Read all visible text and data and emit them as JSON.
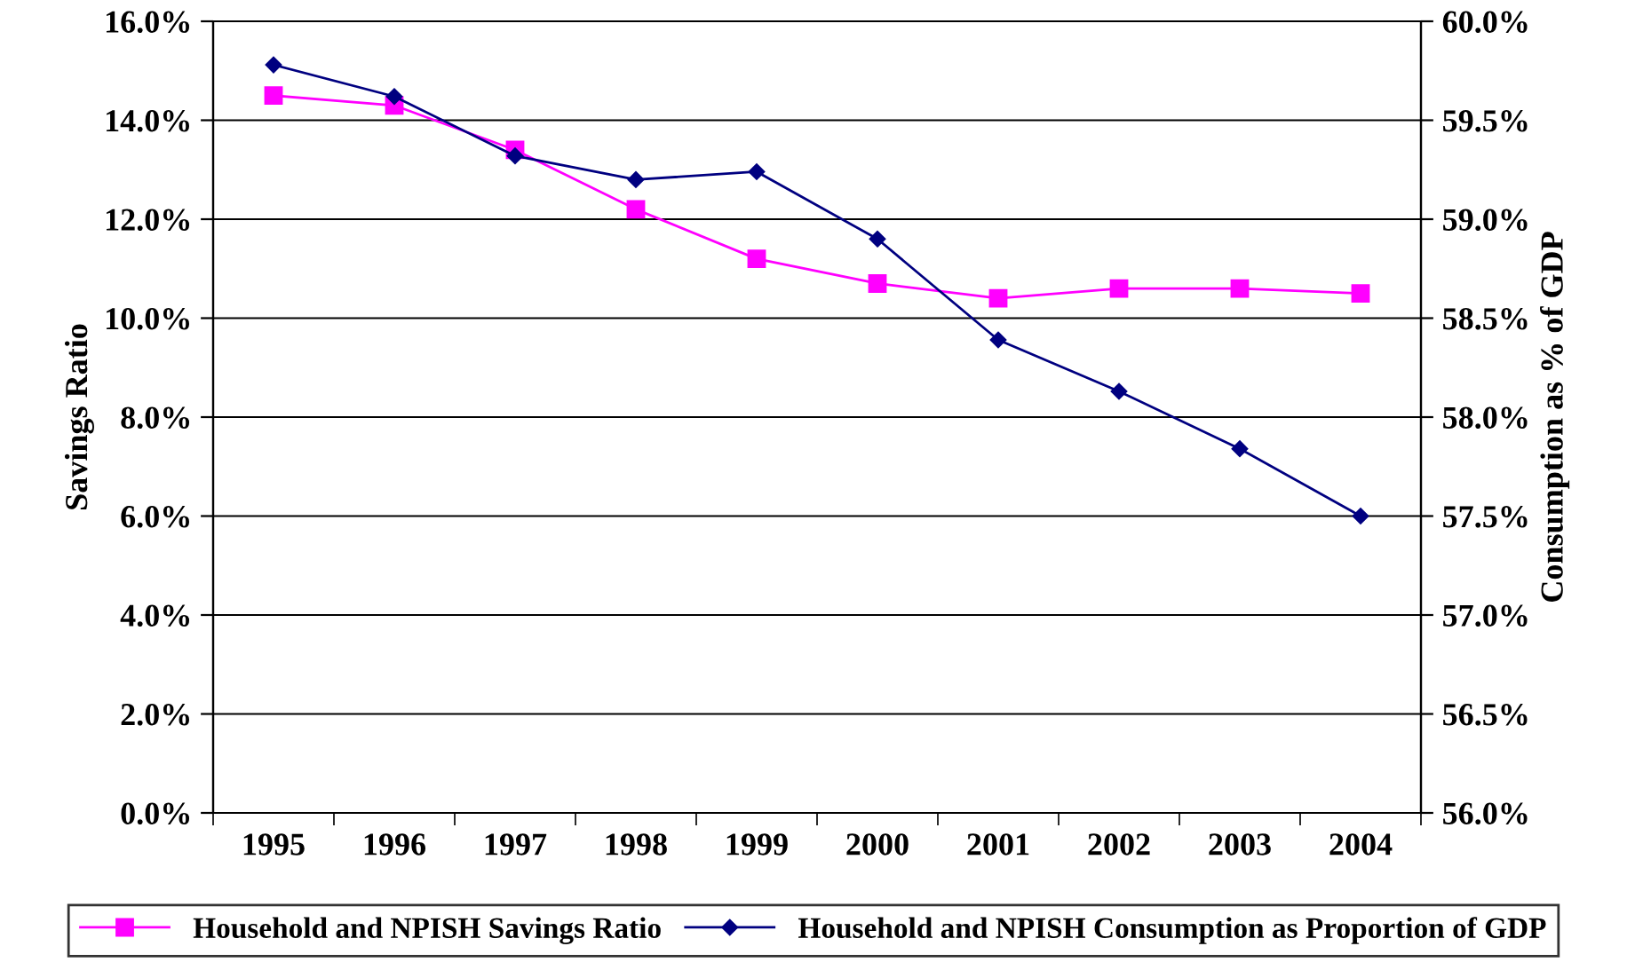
{
  "chart_data": {
    "type": "line",
    "ylabel": "Savings Ratio",
    "y2label": "Consumption as % of GDP",
    "categories": [
      "1995",
      "1996",
      "1997",
      "1998",
      "1999",
      "2000",
      "2001",
      "2002",
      "2003",
      "2004"
    ],
    "series": [
      {
        "name": "Household and NPISH Savings Ratio",
        "color": "#ff00ff",
        "marker": "square",
        "values": [
          14.5,
          14.3,
          13.4,
          12.2,
          11.2,
          10.7,
          10.4,
          10.6,
          10.6,
          10.5
        ]
      },
      {
        "name": "Household and NPISH Consumption as Proportion of GDP",
        "color": "#000080",
        "marker": "diamond",
        "axis": "y2",
        "values": [
          59.78,
          59.62,
          59.32,
          59.2,
          59.24,
          58.9,
          58.39,
          58.13,
          57.84,
          57.5
        ]
      }
    ],
    "ylim": [
      0,
      16
    ],
    "yticks": [
      {
        "value": 0,
        "label": "0.0%"
      },
      {
        "value": 2,
        "label": "2.0%"
      },
      {
        "value": 4,
        "label": "4.0%"
      },
      {
        "value": 6,
        "label": "6.0%"
      },
      {
        "value": 8,
        "label": "8.0%"
      },
      {
        "value": 10,
        "label": "10.0%"
      },
      {
        "value": 12,
        "label": "12.0%"
      },
      {
        "value": 14,
        "label": "14.0%"
      },
      {
        "value": 16,
        "label": "16.0%"
      }
    ],
    "y2lim": [
      56,
      60
    ],
    "y2ticks": [
      {
        "value": 56,
        "label": "56.0%"
      },
      {
        "value": 56.5,
        "label": "56.5%"
      },
      {
        "value": 57,
        "label": "57.0%"
      },
      {
        "value": 57.5,
        "label": "57.5%"
      },
      {
        "value": 58,
        "label": "58.0%"
      },
      {
        "value": 58.5,
        "label": "58.5%"
      },
      {
        "value": 59,
        "label": "59.0%"
      },
      {
        "value": 59.5,
        "label": "59.5%"
      },
      {
        "value": 60,
        "label": "60.0%"
      }
    ],
    "grid": "y",
    "legend": "bottom",
    "line_style": "solid"
  }
}
